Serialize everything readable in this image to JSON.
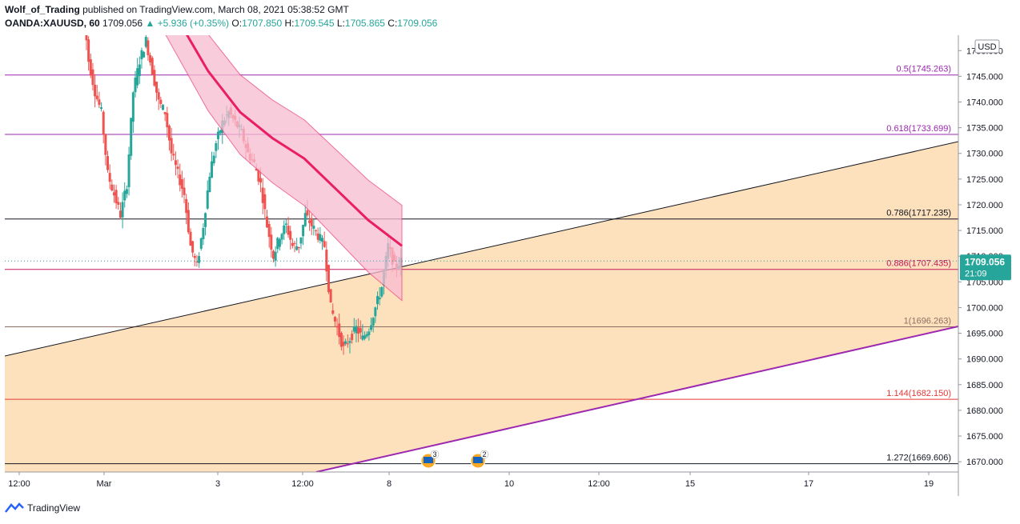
{
  "header": {
    "author": "Wolf_of_Trading",
    "published": "published on TradingView.com, March 08, 2021 05:38:52 GMT",
    "symbol": "OANDA:XAUUSD, 60",
    "last": "1709.056",
    "change": "▲ +5.936 (+0.35%)",
    "o_label": "O:",
    "o": "1707.850",
    "h_label": "H:",
    "h": "1709.545",
    "l_label": "L:",
    "l": "1705.865",
    "c_label": "C:",
    "c": "1709.056"
  },
  "footer": {
    "brand": "TradingView"
  },
  "chart_data": {
    "type": "candlestick",
    "currency": "USD",
    "ylim": [
      1668,
      1753
    ],
    "yticks": [
      "1750.000",
      "1745.000",
      "1740.000",
      "1735.000",
      "1730.000",
      "1725.000",
      "1720.000",
      "1715.000",
      "1710.000",
      "1705.000",
      "1700.000",
      "1695.000",
      "1690.000",
      "1685.000",
      "1680.000",
      "1675.000",
      "1670.000"
    ],
    "ytick_values": [
      1750,
      1745,
      1740,
      1735,
      1730,
      1725,
      1720,
      1715,
      1710,
      1705,
      1700,
      1695,
      1690,
      1685,
      1680,
      1675,
      1670
    ],
    "xticks": [
      "12:00",
      "Mar",
      "3",
      "12:00",
      "8",
      "10",
      "12:00",
      "15",
      "17",
      "19"
    ],
    "price_label": {
      "value": "1709.056",
      "countdown": "21:09",
      "price": 1709.056,
      "color": "#26a69a"
    },
    "fib_levels": [
      {
        "label": "0.5(1745.263)",
        "price": 1745.263,
        "color": "#9c27b0"
      },
      {
        "label": "0.618(1733.699)",
        "price": 1733.699,
        "color": "#9c27b0"
      },
      {
        "label": "0.786(1717.235)",
        "price": 1717.235,
        "color": "#131722"
      },
      {
        "label": "0.886(1707.435)",
        "price": 1707.435,
        "color": "#c2185b"
      },
      {
        "label": "1(1696.263)",
        "price": 1696.263,
        "color": "#8d6e63"
      },
      {
        "label": "1.144(1682.150)",
        "price": 1682.15,
        "color": "#e53935"
      },
      {
        "label": "1.272(1669.606)",
        "price": 1669.606,
        "color": "#131722"
      }
    ],
    "event_badges": [
      "3",
      "2"
    ],
    "close_series": [
      1760,
      1748,
      1742,
      1738,
      1726,
      1722,
      1718,
      1724,
      1742,
      1748,
      1752,
      1746,
      1740,
      1738,
      1730,
      1726,
      1722,
      1712,
      1708,
      1716,
      1726,
      1732,
      1736,
      1738,
      1736,
      1734,
      1730,
      1728,
      1724,
      1716,
      1710,
      1714,
      1716,
      1712,
      1712,
      1718,
      1716,
      1714,
      1712,
      1700,
      1696,
      1692,
      1694,
      1696,
      1694,
      1696,
      1700,
      1704,
      1712,
      1708,
      1709.056
    ]
  }
}
